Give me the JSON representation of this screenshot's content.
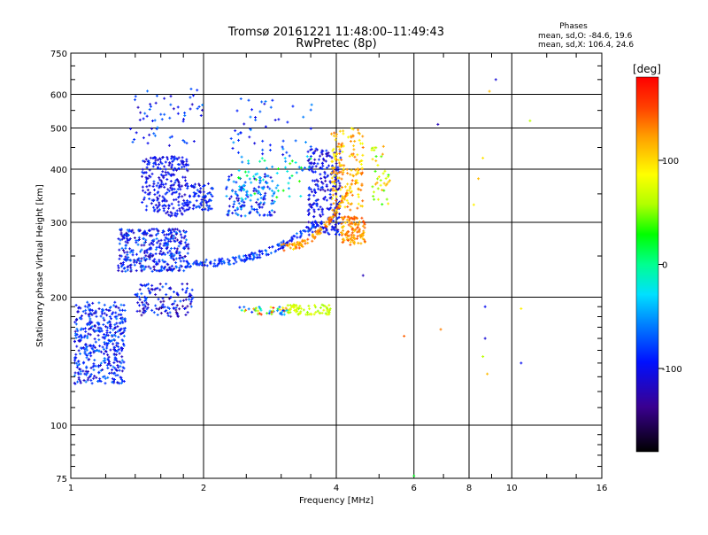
{
  "chart_data": {
    "type": "scatter",
    "title": "Tromsø 20161221 11:48:00–11:49:43",
    "subtitle": "RwPretec (8p)",
    "xlabel": "Frequency [MHz]",
    "ylabel": "Stationary phase Virtual Height [km]",
    "x_scale": "log",
    "y_scale": "log",
    "xlim": [
      1,
      16
    ],
    "ylim": [
      75,
      750
    ],
    "x_ticks": [
      1,
      2,
      4,
      6,
      8,
      10,
      16
    ],
    "y_ticks": [
      75,
      100,
      200,
      300,
      400,
      500,
      600,
      750
    ],
    "x_tick_labels": [
      "1",
      "2",
      "4",
      "6",
      "8",
      "10",
      "16"
    ],
    "y_tick_labels": [
      "75",
      "100",
      "200",
      "300",
      "400",
      "500",
      "600",
      "750"
    ],
    "grid": true,
    "phase_box": {
      "heading": "Phases",
      "line_o": "mean, sd,O: -84.6, 19.6",
      "line_x": "mean, sd,X: 106.4, 24.6"
    },
    "colorbar": {
      "label": "[deg]",
      "range": [
        -180,
        180
      ],
      "tick_values": [
        100,
        0,
        -100
      ],
      "tick_labels": [
        "100",
        "0",
        "-100"
      ]
    },
    "clusters": [
      {
        "f": [
          1.02,
          1.33
        ],
        "h": [
          125,
          195
        ],
        "phase": [
          -120,
          -60
        ],
        "count": 420
      },
      {
        "f": [
          1.28,
          1.85
        ],
        "h": [
          230,
          290
        ],
        "phase": [
          -130,
          -60
        ],
        "count": 360
      },
      {
        "f": [
          1.45,
          1.85
        ],
        "h": [
          310,
          430
        ],
        "phase": [
          -120,
          -80
        ],
        "count": 260
      },
      {
        "f": [
          1.4,
          1.9
        ],
        "h": [
          180,
          215
        ],
        "phase": [
          -140,
          -70
        ],
        "count": 130
      },
      {
        "f": [
          1.85,
          2.1
        ],
        "h": [
          320,
          370
        ],
        "phase": [
          -120,
          -70
        ],
        "count": 70
      },
      {
        "f": [
          2.25,
          2.9
        ],
        "h": [
          310,
          390
        ],
        "phase": [
          -120,
          -40
        ],
        "count": 140
      },
      {
        "f": [
          2.4,
          3.5
        ],
        "h": [
          340,
          430
        ],
        "phase": [
          -70,
          40
        ],
        "count": 60
      },
      {
        "f": [
          3.45,
          4.1
        ],
        "h": [
          280,
          450
        ],
        "phase": [
          -130,
          -80
        ],
        "count": 240
      },
      {
        "f": [
          3.9,
          4.6
        ],
        "h": [
          320,
          500
        ],
        "phase": [
          80,
          140
        ],
        "count": 160
      },
      {
        "f": [
          4.1,
          4.65
        ],
        "h": [
          265,
          310
        ],
        "phase": [
          100,
          150
        ],
        "count": 120
      },
      {
        "f": [
          3.1,
          3.9
        ],
        "h": [
          182,
          192
        ],
        "phase": [
          50,
          80
        ],
        "count": 70
      },
      {
        "f": [
          2.4,
          3.1
        ],
        "h": [
          182,
          190
        ],
        "phase": [
          -100,
          160
        ],
        "count": 50
      },
      {
        "f": [
          4.8,
          5.3
        ],
        "h": [
          330,
          460
        ],
        "phase": [
          30,
          120
        ],
        "count": 40
      },
      {
        "f": [
          1.35,
          2.0
        ],
        "h": [
          450,
          620
        ],
        "phase": [
          -120,
          -60
        ],
        "count": 60
      },
      {
        "f": [
          2.3,
          3.6
        ],
        "h": [
          430,
          600
        ],
        "phase": [
          -110,
          -50
        ],
        "count": 50
      }
    ],
    "arcs": [
      {
        "f0": 1.8,
        "f1": 3.6,
        "h0": 240,
        "h1": 300,
        "phase": [
          -110,
          -60
        ],
        "count": 160
      },
      {
        "f0": 3.0,
        "f1": 4.5,
        "h0": 262,
        "h1": 400,
        "phase": [
          90,
          150
        ],
        "count": 120
      }
    ],
    "isolated_points": [
      {
        "f": 6.8,
        "h": 510,
        "phase": -120
      },
      {
        "f": 9.2,
        "h": 650,
        "phase": -110
      },
      {
        "f": 8.9,
        "h": 610,
        "phase": 110
      },
      {
        "f": 11.0,
        "h": 520,
        "phase": 60
      },
      {
        "f": 8.7,
        "h": 190,
        "phase": -100
      },
      {
        "f": 8.7,
        "h": 160,
        "phase": -110
      },
      {
        "f": 8.6,
        "h": 145,
        "phase": 60
      },
      {
        "f": 8.8,
        "h": 132,
        "phase": 110
      },
      {
        "f": 10.5,
        "h": 140,
        "phase": -100
      },
      {
        "f": 10.5,
        "h": 188,
        "phase": 90
      },
      {
        "f": 6.9,
        "h": 168,
        "phase": 130
      },
      {
        "f": 5.7,
        "h": 162,
        "phase": 140
      },
      {
        "f": 4.6,
        "h": 225,
        "phase": -120
      },
      {
        "f": 6.0,
        "h": 76,
        "phase": 20
      },
      {
        "f": 8.2,
        "h": 330,
        "phase": 90
      },
      {
        "f": 8.4,
        "h": 380,
        "phase": 110
      },
      {
        "f": 8.6,
        "h": 425,
        "phase": 95
      }
    ]
  }
}
